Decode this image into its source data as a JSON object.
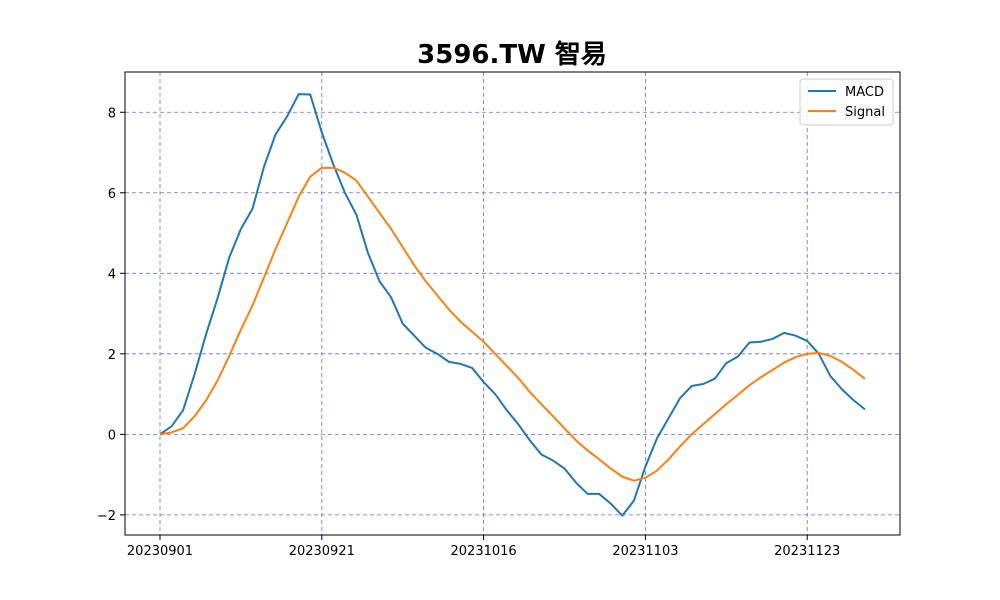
{
  "chart_data": {
    "type": "line",
    "title": "3596.TW 智易",
    "xlabel": "",
    "ylabel": "",
    "x_ticks": [
      "20230901",
      "20230921",
      "20231016",
      "20231103",
      "20231123"
    ],
    "y_ticks": [
      "8",
      "6",
      "4",
      "2",
      "0",
      "−2"
    ],
    "ylim": [
      -2.5,
      9.0
    ],
    "grid": true,
    "legend_position": "top-right",
    "series": [
      {
        "name": "MACD",
        "color": "#1f77b4",
        "values": [
          0.0,
          0.2,
          0.6,
          1.5,
          2.5,
          3.4,
          4.4,
          5.1,
          5.6,
          6.65,
          7.45,
          7.9,
          8.45,
          8.44,
          7.5,
          6.7,
          6.0,
          5.45,
          4.5,
          3.8,
          3.4,
          2.75,
          2.45,
          2.15,
          2.0,
          1.8,
          1.75,
          1.65,
          1.3,
          1.0,
          0.6,
          0.25,
          -0.15,
          -0.5,
          -0.65,
          -0.85,
          -1.2,
          -1.48,
          -1.48,
          -1.72,
          -2.02,
          -1.65,
          -0.8,
          -0.1,
          0.4,
          0.9,
          1.2,
          1.25,
          1.38,
          1.77,
          1.93,
          2.28,
          2.3,
          2.37,
          2.52,
          2.45,
          2.32,
          2.0,
          1.45,
          1.12,
          0.85,
          0.62
        ]
      },
      {
        "name": "Signal",
        "color": "#ff7f0e",
        "values": [
          0.0,
          0.05,
          0.15,
          0.45,
          0.85,
          1.35,
          1.95,
          2.6,
          3.2,
          3.9,
          4.6,
          5.25,
          5.9,
          6.4,
          6.62,
          6.62,
          6.5,
          6.3,
          5.9,
          5.5,
          5.1,
          4.65,
          4.2,
          3.8,
          3.45,
          3.1,
          2.8,
          2.55,
          2.3,
          2.0,
          1.7,
          1.4,
          1.05,
          0.75,
          0.45,
          0.15,
          -0.15,
          -0.4,
          -0.62,
          -0.85,
          -1.05,
          -1.15,
          -1.08,
          -0.9,
          -0.62,
          -0.3,
          0.0,
          0.25,
          0.5,
          0.75,
          0.98,
          1.22,
          1.42,
          1.6,
          1.78,
          1.92,
          2.0,
          2.02,
          1.95,
          1.8,
          1.6,
          1.38
        ]
      }
    ]
  }
}
